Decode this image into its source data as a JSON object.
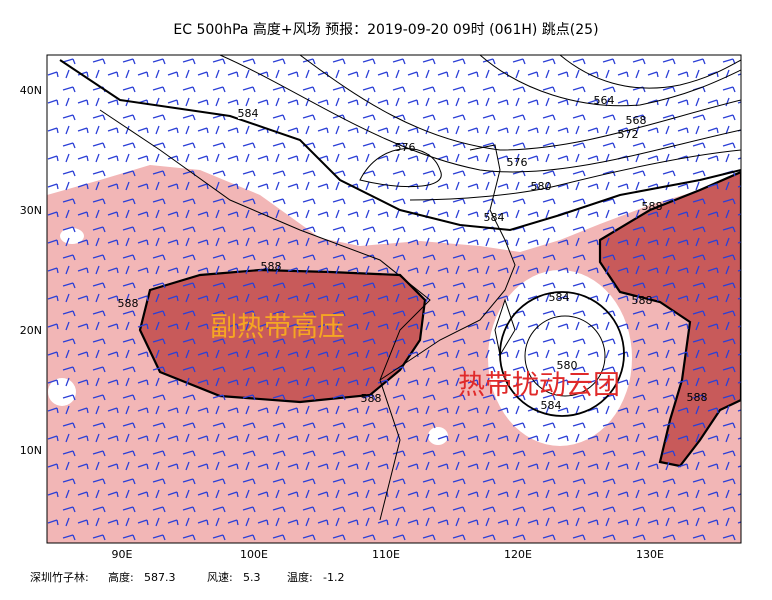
{
  "title": "EC 500hPa 高度+风场  预报：2019-09-20 09时 (061H) 跳点(25)",
  "lat_labels": [
    "40N",
    "30N",
    "20N",
    "10N"
  ],
  "lon_labels": [
    "90E",
    "100E",
    "110E",
    "120E",
    "130E"
  ],
  "contour_labels": [
    584,
    576,
    576,
    564,
    568,
    572,
    580,
    584,
    588,
    588,
    588,
    584,
    580,
    584,
    588,
    588,
    588
  ],
  "annotations": [
    "副热带高压",
    "热带扰动云团"
  ],
  "footer": {
    "station": "深圳竹子林:",
    "fields": [
      {
        "label": "高度:",
        "value": 587.3
      },
      {
        "label": "风速:",
        "value": 5.3
      },
      {
        "label": "温度:",
        "value": -1.2
      }
    ]
  }
}
